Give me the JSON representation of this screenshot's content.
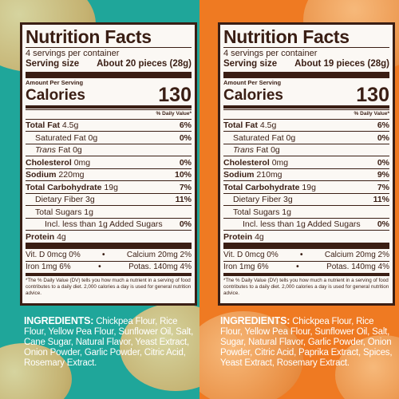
{
  "left": {
    "title": "Nutrition Facts",
    "servings": "4 servings per container",
    "serving_size_label": "Serving size",
    "serving_size_value": "About 20 pieces (28g)",
    "amount_per_serving": "Amount Per Serving",
    "calories_label": "Calories",
    "calories_value": "130",
    "daily_value_header": "% Daily Value*",
    "total_fat_label": "Total Fat",
    "total_fat_amount": "4.5g",
    "total_fat_pct": "6%",
    "saturated_fat_label": "Saturated Fat 0g",
    "saturated_fat_pct": "0%",
    "trans_fat_label_italic": "Trans",
    "trans_fat_label_rest": "Fat 0g",
    "cholesterol_label": "Cholesterol",
    "cholesterol_amount": "0mg",
    "cholesterol_pct": "0%",
    "sodium_label": "Sodium",
    "sodium_amount": "220mg",
    "sodium_pct": "10%",
    "carb_label": "Total Carbohydrate",
    "carb_amount": "19g",
    "carb_pct": "7%",
    "fiber_label": "Dietary Fiber 3g",
    "fiber_pct": "11%",
    "sugars_label": "Total Sugars 1g",
    "added_sugars_label": "Incl. less than 1g Added Sugars",
    "added_sugars_pct": "0%",
    "protein_label": "Protein",
    "protein_amount": "4g",
    "vit_d": "Vit. D 0mcg 0%",
    "calcium": "Calcium 20mg 2%",
    "iron": "Iron 1mg 6%",
    "potassium": "Potas. 140mg 4%",
    "dot": "•",
    "footnote": "*The % Daily Value (DV) tells you how much a nutrient in a serving of food contributes to a daily diet. 2,000 calories a day is used for general nutrition advice.",
    "ingredients_head": "INGREDIENTS:",
    "ingredients_text": "Chickpea Flour, Rice Flour, Yellow Pea Flour, Sunflower Oil, Salt, Cane Sugar, Natural Flavor, Yeast Extract, Onion Powder, Garlic Powder, Citric Acid, Rosemary Extract."
  },
  "right": {
    "title": "Nutrition Facts",
    "servings": "4 servings per container",
    "serving_size_label": "Serving size",
    "serving_size_value": "About 19 pieces (28g)",
    "amount_per_serving": "Amount Per Serving",
    "calories_label": "Calories",
    "calories_value": "130",
    "daily_value_header": "% Daily Value*",
    "total_fat_label": "Total Fat",
    "total_fat_amount": "4.5g",
    "total_fat_pct": "6%",
    "saturated_fat_label": "Saturated Fat 0g",
    "saturated_fat_pct": "0%",
    "trans_fat_label_italic": "Trans",
    "trans_fat_label_rest": "Fat 0g",
    "cholesterol_label": "Cholesterol",
    "cholesterol_amount": "0mg",
    "cholesterol_pct": "0%",
    "sodium_label": "Sodium",
    "sodium_amount": "210mg",
    "sodium_pct": "9%",
    "carb_label": "Total Carbohydrate",
    "carb_amount": "19g",
    "carb_pct": "7%",
    "fiber_label": "Dietary Fiber 3g",
    "fiber_pct": "11%",
    "sugars_label": "Total Sugars 1g",
    "added_sugars_label": "Incl. less than 1g Added Sugars",
    "added_sugars_pct": "0%",
    "protein_label": "Protein",
    "protein_amount": "4g",
    "vit_d": "Vit. D 0mcg 0%",
    "calcium": "Calcium 20mg 2%",
    "iron": "Iron 1mg 6%",
    "potassium": "Potas. 140mg 4%",
    "dot": "•",
    "footnote": "*The % Daily Value (DV) tells you how much a nutrient in a serving of food contributes to a daily diet. 2,000 calories a day is used for general nutrition advice.",
    "ingredients_head": "INGREDIENTS:",
    "ingredients_text": "Chickpea Flour, Rice Flour, Yellow Pea Flour, Sunflower Oil, Salt, Sugar, Natural Flavor, Garlic Powder, Onion Powder, Citric Acid, Paprika Extract, Spices, Yeast Extract, Rosemary Extract."
  },
  "colors": {
    "left_background": "#1fa69a",
    "right_background": "#ef7a22",
    "label_ink": "#3a1e14",
    "label_paper": "#fbf8f4"
  }
}
